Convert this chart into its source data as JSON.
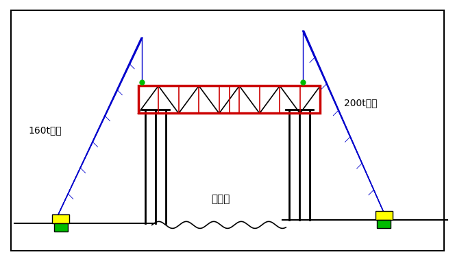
{
  "bg_color": "#ffffff",
  "border_color": "#000000",
  "truss_color": "#cc0000",
  "truss_inner_color": "#000000",
  "crane_color": "#0000cc",
  "ground_color": "#000000",
  "pillar_color": "#000000",
  "crane_body_yellow": "#ffff00",
  "crane_body_green": "#00bb00",
  "hook_color": "#00bb00",
  "text_color": "#000000",
  "label_left": "160t吊车",
  "label_right": "200t吊车",
  "river_label": "随塘河",
  "figsize": [
    6.64,
    3.81
  ],
  "dpi": 100,
  "xlim": [
    0,
    132
  ],
  "ylim": [
    0,
    76
  ]
}
